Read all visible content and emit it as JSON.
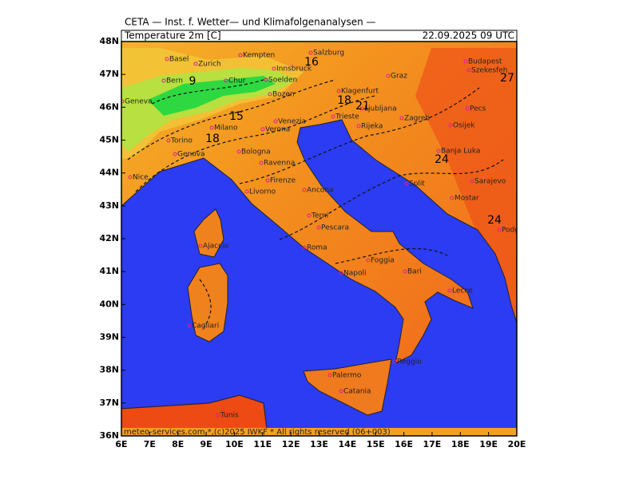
{
  "header": "CETA — Inst. f. Wetter— und Klimafolgenanalysen —",
  "map": {
    "title": "Temperature 2m [C]",
    "valid_time": "22.09.2025 09 UTC",
    "footer": "meteo-services.com *,(c)2025 IWKF * All rights reserved (06+003)",
    "lon_ticks": [
      {
        "value": 6,
        "label": "6E"
      },
      {
        "value": 7,
        "label": "7E"
      },
      {
        "value": 8,
        "label": "8E"
      },
      {
        "value": 9,
        "label": "9E"
      },
      {
        "value": 10,
        "label": "10E"
      },
      {
        "value": 11,
        "label": "11E"
      },
      {
        "value": 12,
        "label": "12E"
      },
      {
        "value": 13,
        "label": "13E"
      },
      {
        "value": 14,
        "label": "14E"
      },
      {
        "value": 15,
        "label": "15E"
      },
      {
        "value": 16,
        "label": "16E"
      },
      {
        "value": 17,
        "label": "17E"
      },
      {
        "value": 18,
        "label": "18E"
      },
      {
        "value": 19,
        "label": "19E"
      },
      {
        "value": 20,
        "label": "20E"
      }
    ],
    "lat_ticks": [
      {
        "value": 36,
        "label": "36N"
      },
      {
        "value": 37,
        "label": "37N"
      },
      {
        "value": 38,
        "label": "38N"
      },
      {
        "value": 39,
        "label": "39N"
      },
      {
        "value": 40,
        "label": "40N"
      },
      {
        "value": 41,
        "label": "41N"
      },
      {
        "value": 42,
        "label": "42N"
      },
      {
        "value": 43,
        "label": "43N"
      },
      {
        "value": 44,
        "label": "44N"
      },
      {
        "value": 45,
        "label": "45N"
      },
      {
        "value": 46,
        "label": "46N"
      },
      {
        "value": 47,
        "label": "47N"
      },
      {
        "value": 48,
        "label": "48N"
      }
    ],
    "contour_labels": [
      9,
      15,
      16,
      18,
      18,
      21,
      24,
      24,
      27
    ],
    "cities": [
      "Basel",
      "Zurich",
      "Bern",
      "Geneva",
      "Chur",
      "Kempten",
      "Innsbruck",
      "Soelden",
      "Bozen",
      "Salzburg",
      "Graz",
      "Klagenfurt",
      "Ljubljana",
      "Venezia",
      "Trieste",
      "Rijeka",
      "Zagreb",
      "Milano",
      "Verona",
      "Torino",
      "Genova",
      "Bologna",
      "Ravenna",
      "Nice",
      "Livorno",
      "Firenze",
      "Ancona",
      "Terni",
      "Pescara",
      "Roma",
      "Foggia",
      "Bari",
      "Napoli",
      "Lecce",
      "Ajaccio",
      "Cagliari",
      "Palermo",
      "Catania",
      "Reggio",
      "Tunis",
      "Split",
      "Banja Luka",
      "Sarajevo",
      "Mostar",
      "Podgorica",
      "Osijek",
      "Pecs",
      "Budapest",
      "Szekesfeh"
    ]
  }
}
